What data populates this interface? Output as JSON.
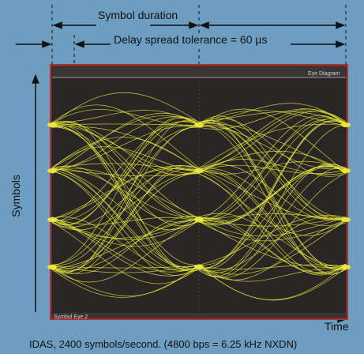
{
  "labels": {
    "symbol_duration": "Symbol duration",
    "delay_spread": "Delay spread tolerance = 60 µs",
    "y_axis": "Symbols",
    "x_axis": "Time",
    "caption": "IDAS, 2400 symbols/second. (4800 bps = 6.25 kHz NXDN)"
  },
  "scope": {
    "title": "Eye Diagram",
    "footer": "Symbol Eye 2"
  },
  "eye": {
    "symbol_levels": 4,
    "symbol_periods_shown": 2
  },
  "colors": {
    "background": "#6d9dc0",
    "scope_screen": "#2a2626",
    "scope_border": "#b03030",
    "trace": "#e6e83a",
    "annotation": "#111111"
  }
}
